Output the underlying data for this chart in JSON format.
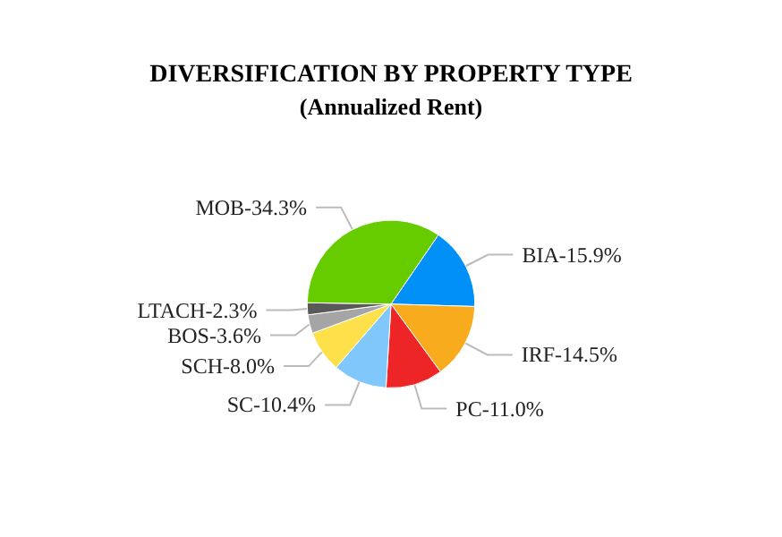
{
  "chart_data": {
    "type": "pie",
    "title": "DIVERSIFICATION BY PROPERTY TYPE",
    "subtitle": "(Annualized Rent)",
    "categories": [
      "BIA-15.9%",
      "IRF-14.5%",
      "PC-11.0%",
      "SC-10.4%",
      "SCH-8.0%",
      "BOS-3.6%",
      "LTACH-2.3%",
      "MOB-34.3%"
    ],
    "values": [
      15.9,
      14.5,
      11.0,
      10.4,
      8.0,
      3.6,
      2.3,
      34.3
    ],
    "colors": [
      "#0090f8",
      "#f8ab1c",
      "#ee2526",
      "#80c8fb",
      "#fde04a",
      "#a5a5a5",
      "#595959",
      "#66cc00"
    ],
    "legend": false
  }
}
